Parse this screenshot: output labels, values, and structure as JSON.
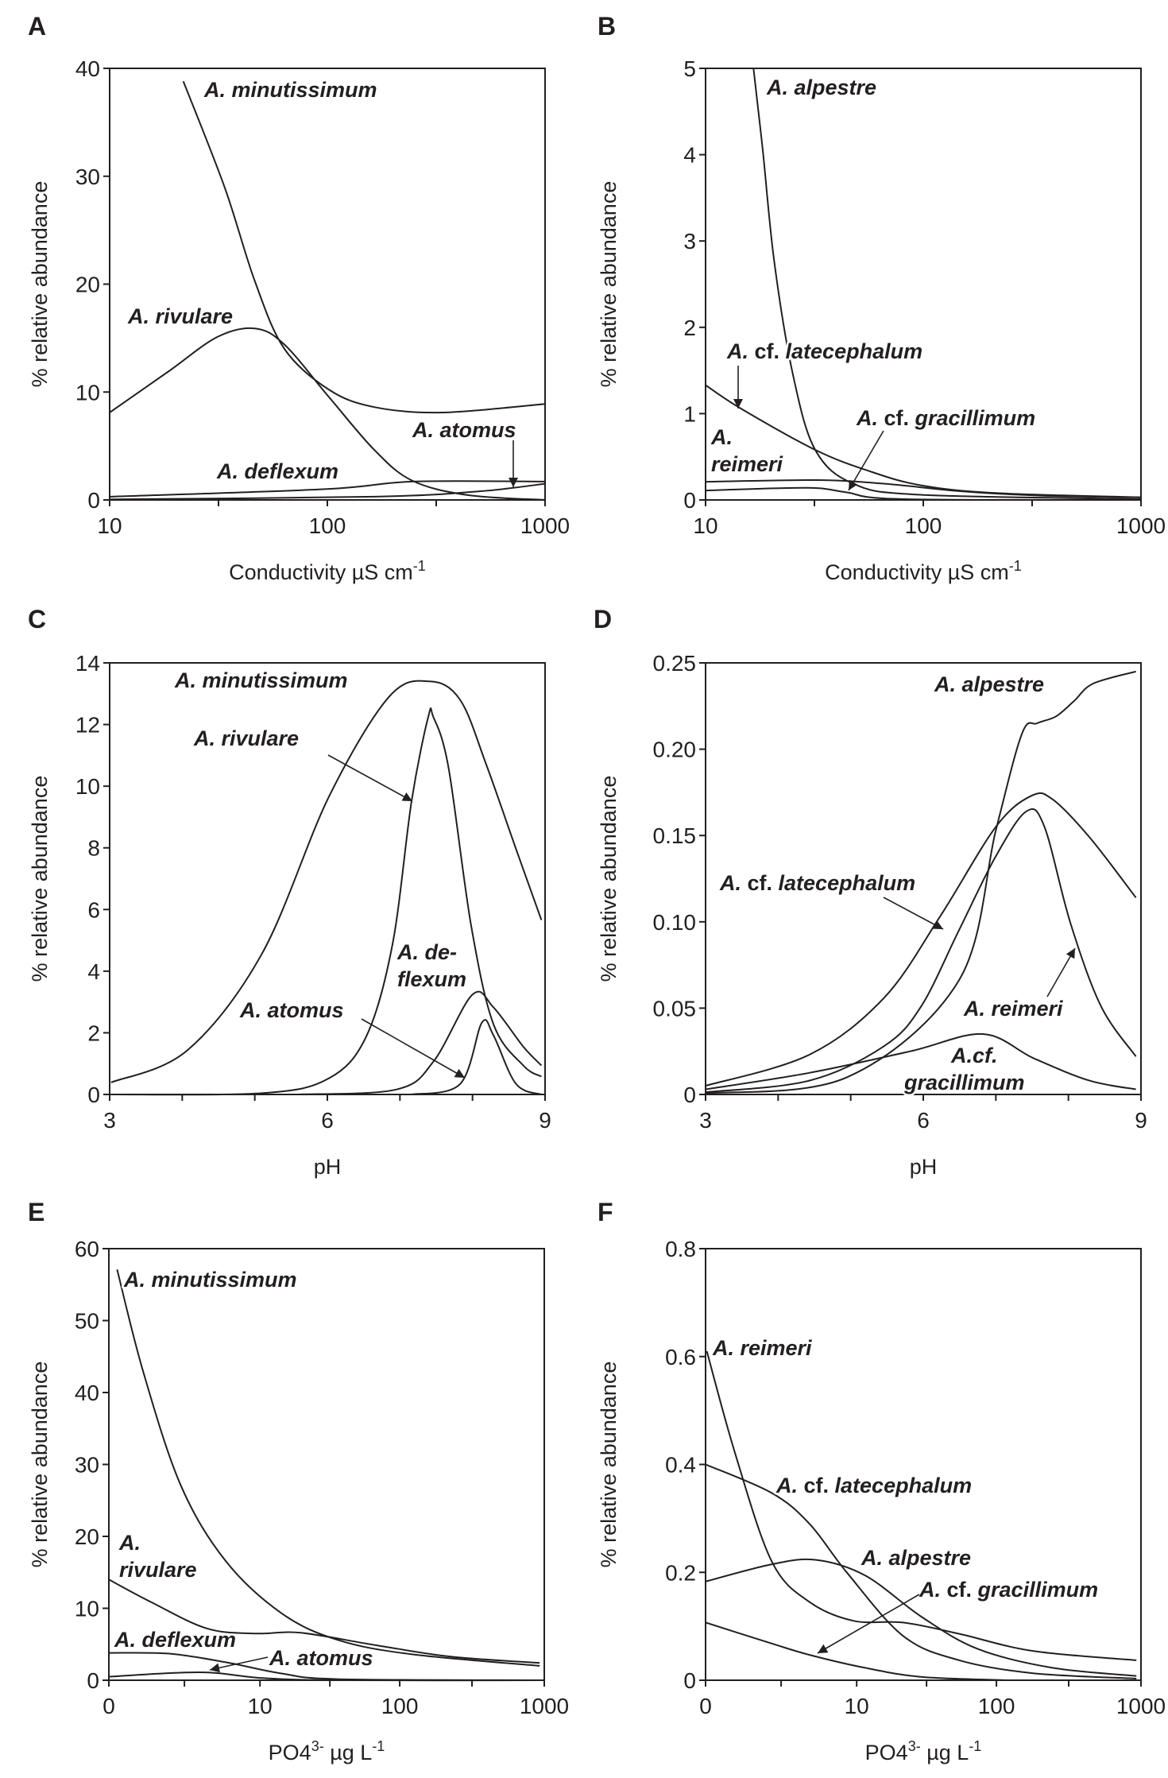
{
  "chart_data": [
    {
      "panel_label": "A",
      "type": "line",
      "xlabel": [
        {
          "t": "Conductivity µS cm"
        },
        {
          "t": "-1",
          "sup": true
        }
      ],
      "ylabel": "% relative abundance",
      "x_scale": "log",
      "xlim": [
        10,
        1000
      ],
      "ylim": [
        0,
        40
      ],
      "xticks": [
        "10",
        "100",
        "1000"
      ],
      "yticks": [
        "0",
        "10",
        "20",
        "30",
        "40"
      ],
      "series": [
        {
          "name": "A. minutissimum",
          "x": [
            21.8,
            33.7,
            46.4,
            63.5,
            102,
            165,
            336,
            1000
          ],
          "y": [
            38.8,
            29,
            20.3,
            14.0,
            10.2,
            8.6,
            8.1,
            8.9
          ]
        },
        {
          "name": "A. rivulare",
          "x": [
            10,
            18.6,
            31.2,
            46.4,
            63.5,
            102,
            165,
            245,
            441,
            1000
          ],
          "y": [
            8.1,
            11.9,
            15.1,
            15.9,
            14.4,
            9.5,
            4.6,
            1.8,
            0.45,
            0
          ]
        },
        {
          "name": "A. deflexum",
          "x": [
            10,
            98,
            245,
            1000
          ],
          "y": [
            0.3,
            1.0,
            1.7,
            1.7
          ]
        },
        {
          "name": "A. atomus",
          "x": [
            10,
            165,
            500,
            1000
          ],
          "y": [
            0.05,
            0.3,
            0.8,
            1.5
          ]
        }
      ],
      "annotations": [
        {
          "lines": [
            "A. minutissimum"
          ]
        },
        {
          "lines": [
            "A. rivulare"
          ]
        },
        {
          "lines": [
            "A. atomus"
          ]
        },
        {
          "lines": [
            "A. deflexum"
          ]
        }
      ]
    },
    {
      "panel_label": "B",
      "type": "line",
      "xlabel": [
        {
          "t": "Conductivity µS cm"
        },
        {
          "t": "-1",
          "sup": true
        }
      ],
      "ylabel": "% relative abundance",
      "x_scale": "log",
      "xlim": [
        10,
        1000
      ],
      "ylim": [
        0,
        5
      ],
      "xticks": [
        "10",
        "100",
        "1000"
      ],
      "yticks": [
        "0",
        "1",
        "2",
        "3",
        "4",
        "5"
      ],
      "series": [
        {
          "name": "A. alpestre",
          "x": [
            16.6,
            18.3,
            20.7,
            25.2,
            31.9,
            47.6,
            97,
            1000
          ],
          "y": [
            5,
            4.06,
            2.75,
            1.45,
            0.58,
            0.19,
            0.06,
            0.01
          ]
        },
        {
          "name": "A. cf. latecephalum",
          "x": [
            10,
            14.5,
            31.9,
            55.6,
            97,
            215,
            1000
          ],
          "y": [
            1.33,
            1.06,
            0.58,
            0.34,
            0.17,
            0.08,
            0.03
          ]
        },
        {
          "name": "A. reimeri",
          "x": [
            10,
            31.9,
            65,
            150,
            350,
            1000
          ],
          "y": [
            0.21,
            0.23,
            0.19,
            0.1,
            0.05,
            0.03
          ]
        },
        {
          "name": "A. cf. gracillimum",
          "x": [
            10,
            29.5,
            44,
            79,
            1000
          ],
          "y": [
            0.11,
            0.14,
            0.09,
            0.01,
            0
          ]
        }
      ],
      "annotations": [
        {
          "lines": [
            "A. alpestre"
          ]
        },
        {
          "lines": [
            "A. cf. latecephalum"
          ]
        },
        {
          "lines": [
            "A.",
            "reimeri"
          ]
        },
        {
          "lines": [
            "A. cf. gracillimum"
          ]
        }
      ]
    },
    {
      "panel_label": "C",
      "type": "line",
      "xlabel": [
        {
          "t": "pH"
        }
      ],
      "ylabel": "% relative abundance",
      "x_scale": "linear",
      "xlim": [
        3,
        9
      ],
      "ylim": [
        0,
        14
      ],
      "xticks": [
        "3",
        "6",
        "9"
      ],
      "yticks": [
        "0",
        "2",
        "4",
        "6",
        "8",
        "10",
        "12",
        "14"
      ],
      "series": [
        {
          "name": "A. minutissimum",
          "x": [
            3.02,
            4.07,
            5.1,
            6.02,
            6.85,
            7.41,
            7.83,
            8.19,
            8.6,
            8.95
          ],
          "y": [
            0.39,
            1.43,
            4.57,
            9.65,
            12.9,
            13.4,
            12.8,
            10.7,
            7.96,
            5.66
          ]
        },
        {
          "name": "A. rivulare",
          "x": [
            3,
            5.1,
            6.02,
            6.54,
            6.9,
            7.16,
            7.39,
            7.46,
            7.67,
            7.98,
            8.29,
            8.7,
            8.95
          ],
          "y": [
            0,
            0.04,
            0.52,
            1.9,
            4.9,
            9.5,
            12.25,
            12.25,
            10.6,
            5.5,
            2.27,
            0.94,
            0.58
          ]
        },
        {
          "name": "A. deflexum",
          "x": [
            5.6,
            6.95,
            7.46,
            8.0,
            8.29,
            8.7,
            8.95
          ],
          "y": [
            0,
            0.16,
            1.06,
            3.24,
            2.82,
            1.55,
            0.94
          ]
        },
        {
          "name": "A. atomus",
          "x": [
            7.16,
            7.83,
            8.13,
            8.29,
            8.6,
            8.95
          ],
          "y": [
            0,
            0.34,
            2.33,
            1.91,
            0.34,
            0
          ]
        }
      ],
      "annotations": [
        {
          "lines": [
            "A. minutissimum"
          ]
        },
        {
          "lines": [
            "A. rivulare"
          ]
        },
        {
          "lines": [
            "A. de-",
            "flexum"
          ]
        },
        {
          "lines": [
            "A. atomus"
          ]
        }
      ]
    },
    {
      "panel_label": "D",
      "type": "line",
      "xlabel": [
        {
          "t": "pH"
        }
      ],
      "ylabel": "% relative abundance",
      "x_scale": "linear",
      "xlim": [
        3,
        9
      ],
      "ylim": [
        0,
        0.25
      ],
      "xticks": [
        "3",
        "6",
        "9"
      ],
      "yticks": [
        "0",
        "0.05",
        "0.10",
        "0.15",
        "0.20",
        "0.25"
      ],
      "series": [
        {
          "name": "A. alpestre",
          "x": [
            3,
            4.95,
            6.49,
            7.0,
            7.36,
            7.57,
            7.83,
            8.08,
            8.34,
            8.93
          ],
          "y": [
            0.0006,
            0.01,
            0.066,
            0.153,
            0.209,
            0.215,
            0.219,
            0.228,
            0.238,
            0.245
          ]
        },
        {
          "name": "A. cf. latecephalum",
          "x": [
            3,
            4.43,
            5.46,
            6.23,
            7.0,
            7.49,
            7.78,
            8.29,
            8.93
          ],
          "y": [
            0.005,
            0.023,
            0.056,
            0.103,
            0.155,
            0.173,
            0.171,
            0.149,
            0.114
          ]
        },
        {
          "name": "A. reimeri",
          "x": [
            3,
            4.43,
            5.46,
            5.97,
            6.49,
            7.0,
            7.42,
            7.67,
            8.03,
            8.45,
            8.93
          ],
          "y": [
            0.0013,
            0.008,
            0.028,
            0.051,
            0.095,
            0.138,
            0.164,
            0.155,
            0.099,
            0.051,
            0.022
          ]
        },
        {
          "name": "A. cf. gracillimum",
          "x": [
            3,
            4.43,
            5.82,
            6.82,
            7.52,
            8.29,
            8.93
          ],
          "y": [
            0.003,
            0.0125,
            0.025,
            0.035,
            0.021,
            0.008,
            0.003
          ]
        }
      ],
      "annotations": [
        {
          "lines": [
            "A. alpestre"
          ]
        },
        {
          "lines": [
            "A. cf. latecephalum"
          ]
        },
        {
          "lines": [
            "A. reimeri"
          ]
        },
        {
          "lines": [
            "A.cf.",
            "gracillimum"
          ]
        }
      ]
    },
    {
      "panel_label": "E",
      "type": "line",
      "xlabel": [
        {
          "t": "PO4"
        },
        {
          "t": "3-",
          "sup": true
        },
        {
          "t": " µg L"
        },
        {
          "t": "-1",
          "sup": true
        }
      ],
      "ylabel": "% relative abundance",
      "x_scale": "log1p",
      "xlim": [
        0,
        1000
      ],
      "ylim": [
        0,
        60
      ],
      "xticks": [
        "0",
        "10",
        "100",
        "1000"
      ],
      "yticks": [
        "0",
        "10",
        "20",
        "30",
        "40",
        "50",
        "60"
      ],
      "series": [
        {
          "name": "A. minutissimum",
          "x": [
            0.14,
            0.73,
            2.13,
            5.37,
            14.5,
            36.8,
            122,
            930
          ],
          "y": [
            57.1,
            42.8,
            27.1,
            16.6,
            9.3,
            5.6,
            3.6,
            2.0
          ]
        },
        {
          "name": "A. rivulare",
          "x": [
            0,
            0.94,
            3.73,
            9.2,
            20,
            67,
            223,
            930
          ],
          "y": [
            14.0,
            10.9,
            7.2,
            6.5,
            6.6,
            4.9,
            3.3,
            2.4
          ]
        },
        {
          "name": "A. deflexum",
          "x": [
            0,
            1.6,
            5.4,
            14.5,
            36.8,
            930
          ],
          "y": [
            3.8,
            3.7,
            2.5,
            0.94,
            0.16,
            0
          ]
        },
        {
          "name": "A. atomus",
          "x": [
            0,
            3.2,
            10.5,
            36.8,
            930
          ],
          "y": [
            0.5,
            1.1,
            0.3,
            0,
            0
          ]
        }
      ],
      "annotations": [
        {
          "lines": [
            "A. minutissimum"
          ]
        },
        {
          "lines": [
            "A.",
            "rivulare"
          ]
        },
        {
          "lines": [
            "A. deflexum"
          ]
        },
        {
          "lines": [
            "A. atomus"
          ]
        }
      ]
    },
    {
      "panel_label": "F",
      "type": "line",
      "xlabel": [
        {
          "t": "PO4"
        },
        {
          "t": "3-",
          "sup": true
        },
        {
          "t": " µg L"
        },
        {
          "t": "-1",
          "sup": true
        }
      ],
      "ylabel": "% relative abundance",
      "x_scale": "log1p",
      "xlim": [
        0,
        1000
      ],
      "ylim": [
        0,
        0.8
      ],
      "xticks": [
        "0",
        "10",
        "100",
        "1000"
      ],
      "yticks": [
        "0",
        "0.2",
        "0.4",
        "0.6",
        "0.8"
      ],
      "series": [
        {
          "name": "A. reimeri",
          "x": [
            0.02,
            0.6,
            1.86,
            4.2,
            9.5,
            22,
            55,
            181,
            930
          ],
          "y": [
            0.61,
            0.42,
            0.22,
            0.145,
            0.11,
            0.107,
            0.086,
            0.054,
            0.037
          ]
        },
        {
          "name": "A. cf. latecephalum",
          "x": [
            0,
            1.86,
            4.2,
            8.4,
            22,
            55,
            180,
            930
          ],
          "y": [
            0.4,
            0.347,
            0.29,
            0.2,
            0.082,
            0.037,
            0.013,
            0.003
          ]
        },
        {
          "name": "A. alpestre",
          "x": [
            0,
            1.86,
            4.8,
            11.6,
            30,
            74,
            245,
            930
          ],
          "y": [
            0.183,
            0.215,
            0.223,
            0.194,
            0.117,
            0.058,
            0.023,
            0.008
          ]
        },
        {
          "name": "A. cf. gracillimum",
          "x": [
            0,
            1.86,
            4.2,
            11.6,
            30,
            120
          ],
          "y": [
            0.107,
            0.068,
            0.047,
            0.023,
            0.006,
            0
          ]
        }
      ],
      "annotations": [
        {
          "lines": [
            "A. reimeri"
          ]
        },
        {
          "lines": [
            "A. cf. latecephalum"
          ]
        },
        {
          "lines": [
            "A. alpestre"
          ]
        },
        {
          "lines": [
            "A. cf. gracillimum"
          ]
        }
      ]
    }
  ]
}
